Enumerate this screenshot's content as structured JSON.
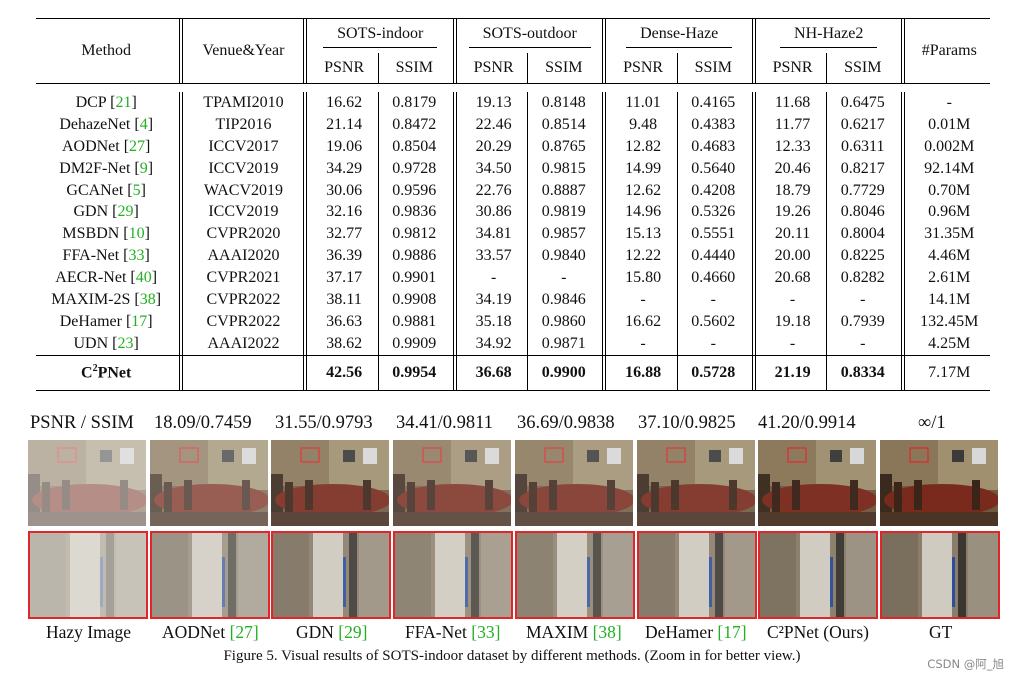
{
  "table": {
    "col_method": "Method",
    "col_venue": "Venue&Year",
    "groups": [
      "SOTS-indoor",
      "SOTS-outdoor",
      "Dense-Haze",
      "NH-Haze2"
    ],
    "sub_psnr": "PSNR",
    "sub_ssim": "SSIM",
    "col_params": "#Params",
    "rows": [
      {
        "name": "DCP",
        "cite": "21",
        "venue": "TPAMI2010",
        "v": [
          "16.62",
          "0.8179",
          "19.13",
          "0.8148",
          "11.01",
          "0.4165",
          "11.68",
          "0.6475"
        ],
        "params": "-"
      },
      {
        "name": "DehazeNet",
        "cite": "4",
        "venue": "TIP2016",
        "v": [
          "21.14",
          "0.8472",
          "22.46",
          "0.8514",
          "9.48",
          "0.4383",
          "11.77",
          "0.6217"
        ],
        "params": "0.01M"
      },
      {
        "name": "AODNet",
        "cite": "27",
        "venue": "ICCV2017",
        "v": [
          "19.06",
          "0.8504",
          "20.29",
          "0.8765",
          "12.82",
          "0.4683",
          "12.33",
          "0.6311"
        ],
        "params": "0.002M"
      },
      {
        "name": "DM2F-Net",
        "cite": "9",
        "venue": "ICCV2019",
        "v": [
          "34.29",
          "0.9728",
          "34.50",
          "0.9815",
          "14.99",
          "0.5640",
          "20.46",
          "0.8217"
        ],
        "params": "92.14M"
      },
      {
        "name": "GCANet",
        "cite": "5",
        "venue": "WACV2019",
        "v": [
          "30.06",
          "0.9596",
          "22.76",
          "0.8887",
          "12.62",
          "0.4208",
          "18.79",
          "0.7729"
        ],
        "params": "0.70M"
      },
      {
        "name": "GDN",
        "cite": "29",
        "venue": "ICCV2019",
        "v": [
          "32.16",
          "0.9836",
          "30.86",
          "0.9819",
          "14.96",
          "0.5326",
          "19.26",
          "0.8046"
        ],
        "params": "0.96M"
      },
      {
        "name": "MSBDN",
        "cite": "10",
        "venue": "CVPR2020",
        "v": [
          "32.77",
          "0.9812",
          "34.81",
          "0.9857",
          "15.13",
          "0.5551",
          "20.11",
          "0.8004"
        ],
        "params": "31.35M"
      },
      {
        "name": "FFA-Net",
        "cite": "33",
        "venue": "AAAI2020",
        "v": [
          "36.39",
          "0.9886",
          "33.57",
          "0.9840",
          "12.22",
          "0.4440",
          "20.00",
          "0.8225"
        ],
        "params": "4.46M"
      },
      {
        "name": "AECR-Net",
        "cite": "40",
        "venue": "CVPR2021",
        "v": [
          "37.17",
          "0.9901",
          "-",
          "-",
          "15.80",
          "0.4660",
          "20.68",
          "0.8282"
        ],
        "params": "2.61M"
      },
      {
        "name": "MAXIM-2S",
        "cite": "38",
        "venue": "CVPR2022",
        "v": [
          "38.11",
          "0.9908",
          "34.19",
          "0.9846",
          "-",
          "-",
          "-",
          "-"
        ],
        "params": "14.1M"
      },
      {
        "name": "DeHamer",
        "cite": "17",
        "venue": "CVPR2022",
        "v": [
          "36.63",
          "0.9881",
          "35.18",
          "0.9860",
          "16.62",
          "0.5602",
          "19.18",
          "0.7939"
        ],
        "params": "132.45M"
      },
      {
        "name": "UDN",
        "cite": "23",
        "venue": "AAAI2022",
        "v": [
          "38.62",
          "0.9909",
          "34.92",
          "0.9871",
          "-",
          "-",
          "-",
          "-"
        ],
        "params": "4.25M"
      }
    ],
    "ours": {
      "name_prefix": "C",
      "name_sup": "2",
      "name_suffix": "PNet",
      "venue": "",
      "v": [
        "42.56",
        "0.9954",
        "36.68",
        "0.9900",
        "16.88",
        "0.5728",
        "21.19",
        "0.8334"
      ],
      "params": "7.17M"
    }
  },
  "figure": {
    "score_header": "PSNR / SSIM",
    "scores": [
      "18.09/0.7459",
      "31.55/0.9793",
      "34.41/0.9811",
      "36.69/0.9838",
      "37.10/0.9825",
      "41.20/0.9914",
      "∞/1"
    ],
    "labels": [
      {
        "text": "Hazy Image",
        "cite": ""
      },
      {
        "text": "AODNet ",
        "cite": "[27]"
      },
      {
        "text": "GDN ",
        "cite": "[29]"
      },
      {
        "text": "FFA-Net ",
        "cite": "[33]"
      },
      {
        "text": "MAXIM ",
        "cite": "[38]"
      },
      {
        "text": "DeHamer ",
        "cite": "[17]"
      },
      {
        "text": "C²PNet (Ours)",
        "cite": ""
      },
      {
        "text": "GT",
        "cite": ""
      }
    ],
    "haze_levels": [
      0.62,
      0.32,
      0.12,
      0.2,
      0.18,
      0.12,
      0.04,
      0.0
    ],
    "caption": "Figure 5. Visual results of SOTS-indoor dataset by different methods. (Zoom in for better view.)"
  },
  "watermark": "CSDN @阿_旭",
  "colors": {
    "cite": "#22b022",
    "crop_border": "#e0262a"
  }
}
